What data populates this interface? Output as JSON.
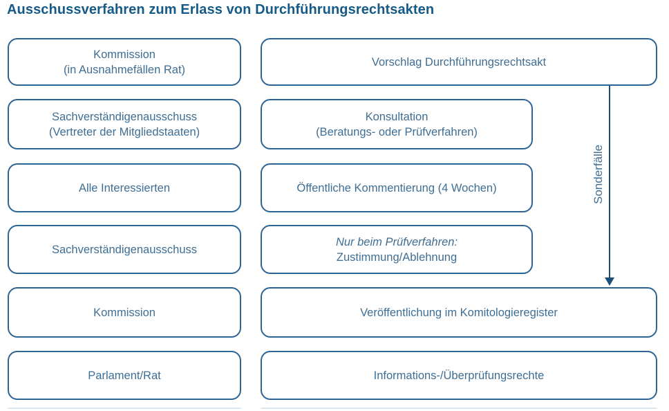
{
  "title": "Ausschussverfahren zum Erlass von Durchführungsrechtsakten",
  "colors": {
    "title": "#155a88",
    "box_border": "#2b6495",
    "box_text": "#3f6e93",
    "arrow": "#1c5078"
  },
  "diagram": {
    "left_column": [
      {
        "lines": [
          "Kommission",
          "(in Ausnahmefällen Rat)"
        ]
      },
      {
        "lines": [
          "Sachverständigenausschuss",
          "(Vertreter der Mitgliedstaaten)"
        ]
      },
      {
        "lines": [
          "Alle Interessierten"
        ]
      },
      {
        "lines": [
          "Sachverständigenausschuss"
        ]
      },
      {
        "lines": [
          "Kommission"
        ]
      },
      {
        "lines": [
          "Parlament/Rat"
        ]
      }
    ],
    "right_column": [
      {
        "lines": [
          "Vorschlag Durchführungsrechtsakt"
        ]
      },
      {
        "lines": [
          "Konsultation",
          "(Beratungs- oder Prüfverfahren)"
        ]
      },
      {
        "lines": [
          "Öffentliche Kommentierung (4 Wochen)"
        ]
      },
      {
        "lines": [
          "Nur beim Prüfverfahren:",
          "Zustimmung/Ablehnung"
        ]
      },
      {
        "lines": [
          "Veröffentlichung im Komitologieregister"
        ]
      },
      {
        "lines": [
          "Informations-/Überprüfungsrechte"
        ]
      }
    ],
    "arrow_label": "Sonderfälle"
  }
}
